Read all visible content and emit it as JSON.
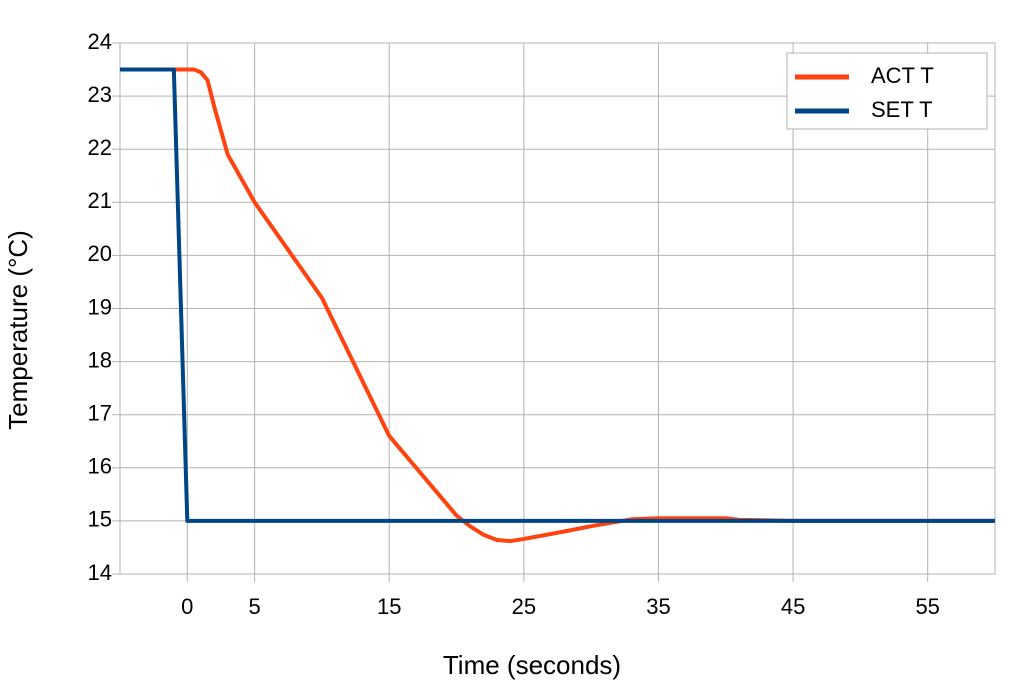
{
  "chart_data": {
    "type": "line",
    "xlabel": "Time (seconds)",
    "ylabel": "Temperature (°C)",
    "xlim": [
      -5,
      60
    ],
    "xticks": [
      0,
      5,
      15,
      25,
      35,
      45,
      55
    ],
    "ylim": [
      14,
      24
    ],
    "yticks": [
      14,
      15,
      16,
      17,
      18,
      19,
      20,
      21,
      22,
      23,
      24
    ],
    "grid": true,
    "legend": "upper right",
    "series": [
      {
        "name": "ACT T",
        "color": "#ff420e",
        "x": [
          -5,
          0,
          0.5,
          1,
          1.5,
          2,
          3,
          5,
          10,
          15,
          20,
          21,
          22,
          23,
          24,
          25,
          28,
          30,
          33,
          35,
          40,
          41,
          45,
          60
        ],
        "values": [
          23.5,
          23.5,
          23.5,
          23.45,
          23.3,
          22.8,
          21.9,
          21.0,
          19.2,
          16.6,
          15.1,
          14.9,
          14.74,
          14.64,
          14.62,
          14.66,
          14.8,
          14.9,
          15.03,
          15.05,
          15.05,
          15.02,
          15.0,
          15.0
        ]
      },
      {
        "name": "SET T",
        "color": "#004586",
        "x": [
          -5,
          -1,
          0,
          60
        ],
        "values": [
          23.5,
          23.5,
          15,
          15
        ]
      }
    ]
  }
}
